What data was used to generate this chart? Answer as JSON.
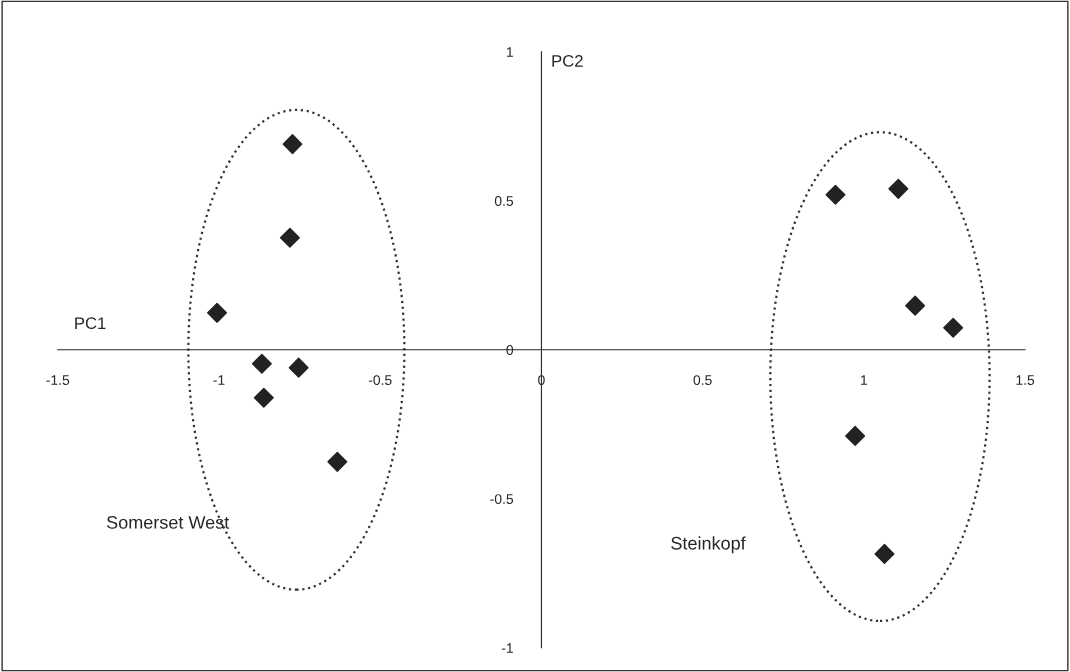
{
  "chart_data": {
    "type": "scatter",
    "marker": "diamond",
    "grid": false,
    "x": [
      -0.772,
      -0.78,
      -1.006,
      -0.867,
      -0.753,
      -0.861,
      -0.633,
      0.912,
      1.107,
      1.159,
      1.277,
      0.973,
      1.064
    ],
    "series": [
      {
        "color": "#222222",
        "values": [
          0.69,
          0.376,
          0.124,
          -0.047,
          -0.06,
          -0.161,
          -0.376,
          0.52,
          0.54,
          0.148,
          0.074,
          -0.289,
          -0.685
        ]
      }
    ],
    "xlim": [
      -1.5,
      1.5
    ],
    "xticks": [
      -1.5,
      -1,
      -0.5,
      0,
      0.5,
      1,
      1.5
    ],
    "ylim": [
      -1,
      1
    ],
    "yticks": [
      -1,
      -0.5,
      0,
      0.5,
      1
    ],
    "annotations": [
      "PC1",
      "PC2",
      "Somerset West",
      "Steinkopf"
    ]
  }
}
